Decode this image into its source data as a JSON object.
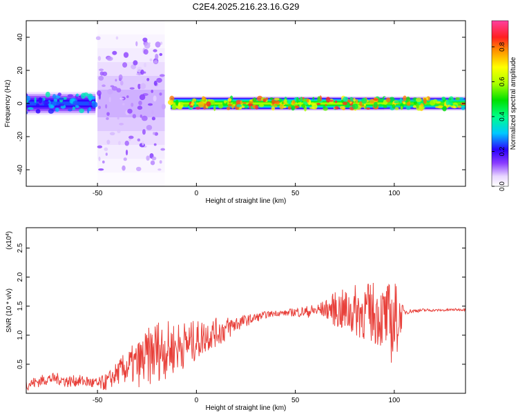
{
  "title": "C2E4.2025.216.23.16.G29",
  "colorbar": {
    "label": "Normalized spectral amplitude",
    "ticks": [
      0.0,
      0.2,
      0.4,
      0.6,
      0.8
    ],
    "tick_labels": [
      "0.0",
      "0.2",
      "0.4",
      "0.6",
      "0.8"
    ]
  },
  "chart_data": [
    {
      "type": "heatmap",
      "xlabel": "Height of straight line (km)",
      "ylabel": "Frequency (Hz)",
      "xlim": [
        -86,
        136
      ],
      "ylim": [
        -50,
        50
      ],
      "x_ticks": [
        -50,
        0,
        50,
        100
      ],
      "x_tick_labels": [
        "-50",
        "0",
        "50",
        "100"
      ],
      "y_ticks": [
        -40,
        -20,
        0,
        20,
        40
      ],
      "y_tick_labels": [
        "-40",
        "-20",
        "0",
        "20",
        "40"
      ],
      "colorscale_max": 0.95,
      "regions": [
        {
          "x": [
            -86,
            -51
          ],
          "f_center": 0,
          "f_halfwidth": 7,
          "amplitude": 0.25
        },
        {
          "x": [
            -50,
            -16
          ],
          "f_center": 0,
          "f_halfwidth": 50,
          "amplitude": 0.1
        },
        {
          "x": [
            -13,
            95
          ],
          "f_center": 0,
          "f_halfwidth": 4,
          "amplitude": 0.6
        },
        {
          "x": [
            95,
            136
          ],
          "f_center": 0,
          "f_halfwidth": 4,
          "amplitude": 0.55
        }
      ]
    },
    {
      "type": "line",
      "xlabel": "Height of straight line (km)",
      "ylabel": "SNR (10 * v/v)",
      "y_multiplier_label": "(x10",
      "y_multiplier_exp": "4",
      "y_multiplier_close": ")",
      "xlim": [
        -86,
        136
      ],
      "ylim": [
        0,
        2.85
      ],
      "x_ticks": [
        -50,
        0,
        50,
        100
      ],
      "x_tick_labels": [
        "-50",
        "0",
        "50",
        "100"
      ],
      "y_ticks": [
        0.5,
        1.0,
        1.5,
        2.0,
        2.5
      ],
      "y_tick_labels": [
        "0.5",
        "1.0",
        "1.5",
        "2.0",
        "2.5"
      ],
      "color": "#e8403a",
      "x": [
        -86,
        -80,
        -75,
        -70,
        -65,
        -60,
        -55,
        -50,
        -45,
        -40,
        -35,
        -30,
        -25,
        -20,
        -15,
        -10,
        -5,
        0,
        5,
        10,
        15,
        20,
        25,
        30,
        35,
        40,
        45,
        50,
        55,
        60,
        65,
        70,
        75,
        80,
        85,
        90,
        95,
        100,
        105,
        110,
        115,
        120,
        125,
        130,
        136
      ],
      "y": [
        0.15,
        0.2,
        0.25,
        0.25,
        0.2,
        0.22,
        0.2,
        0.15,
        0.2,
        0.35,
        0.45,
        0.5,
        0.6,
        0.75,
        0.75,
        0.8,
        0.85,
        0.9,
        1.0,
        1.05,
        1.1,
        1.2,
        1.25,
        1.3,
        1.35,
        1.38,
        1.38,
        1.4,
        1.4,
        1.42,
        1.45,
        1.45,
        1.4,
        1.42,
        1.4,
        1.38,
        1.3,
        1.2,
        1.4,
        1.42,
        1.43,
        1.43,
        1.43,
        1.44,
        1.44
      ],
      "noise": [
        0.1,
        0.1,
        0.1,
        0.1,
        0.1,
        0.1,
        0.1,
        0.12,
        0.15,
        0.2,
        0.3,
        0.4,
        0.5,
        0.55,
        0.5,
        0.45,
        0.4,
        0.35,
        0.3,
        0.25,
        0.22,
        0.15,
        0.1,
        0.08,
        0.06,
        0.05,
        0.05,
        0.08,
        0.1,
        0.12,
        0.15,
        0.3,
        0.4,
        0.45,
        0.5,
        0.55,
        0.55,
        0.8,
        0.05,
        0.03,
        0.03,
        0.02,
        0.02,
        0.02,
        0.02
      ]
    }
  ]
}
